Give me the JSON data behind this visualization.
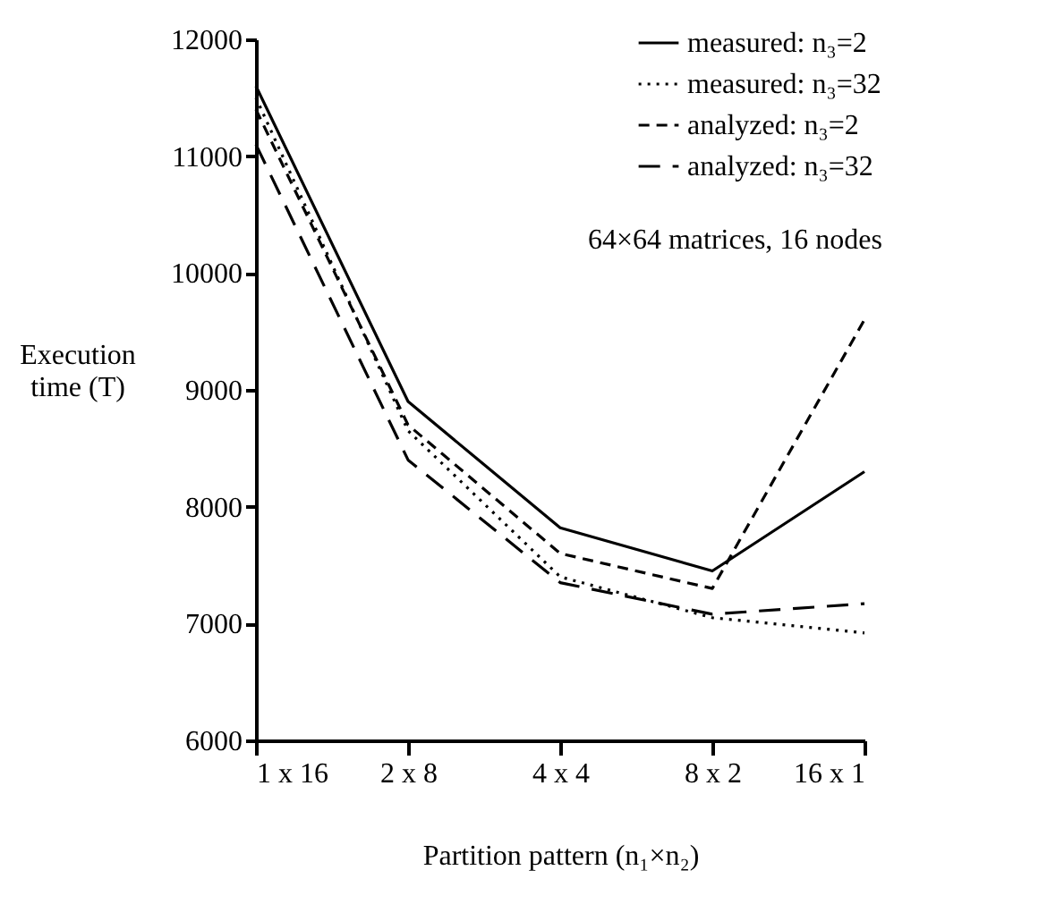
{
  "chart_data": {
    "type": "line",
    "xlabel": "Partition pattern (n₁×n₂)",
    "ylabel": "Execution time (T)",
    "categories": [
      "1 x 16",
      "2 x 8",
      "4 x 4",
      "8 x 2",
      "16 x 1"
    ],
    "ylim": [
      6000,
      12000
    ],
    "yticks": [
      6000,
      7000,
      8000,
      9000,
      10000,
      11000,
      12000
    ],
    "grid": false,
    "legend": "top right",
    "marker": "none",
    "annotations": [
      "64×64 matrices, 16 nodes"
    ],
    "series": [
      {
        "name": "measured: n₃=2",
        "color": "#000000",
        "line_style": "solid",
        "values": [
          11600,
          8900,
          7820,
          7450,
          8300
        ]
      },
      {
        "name": "measured: n₃=32",
        "color": "#000000",
        "line_style": "dotted",
        "values": [
          11500,
          8650,
          7400,
          7050,
          6920
        ]
      },
      {
        "name": "analyzed: n₃=2",
        "color": "#000000",
        "line_style": "dashed",
        "values": [
          11400,
          8700,
          7600,
          7300,
          9600
        ]
      },
      {
        "name": "analyzed: n₃=32",
        "color": "#000000",
        "line_style": "dashed",
        "values": [
          11100,
          8400,
          7350,
          7080,
          7170
        ]
      }
    ]
  }
}
